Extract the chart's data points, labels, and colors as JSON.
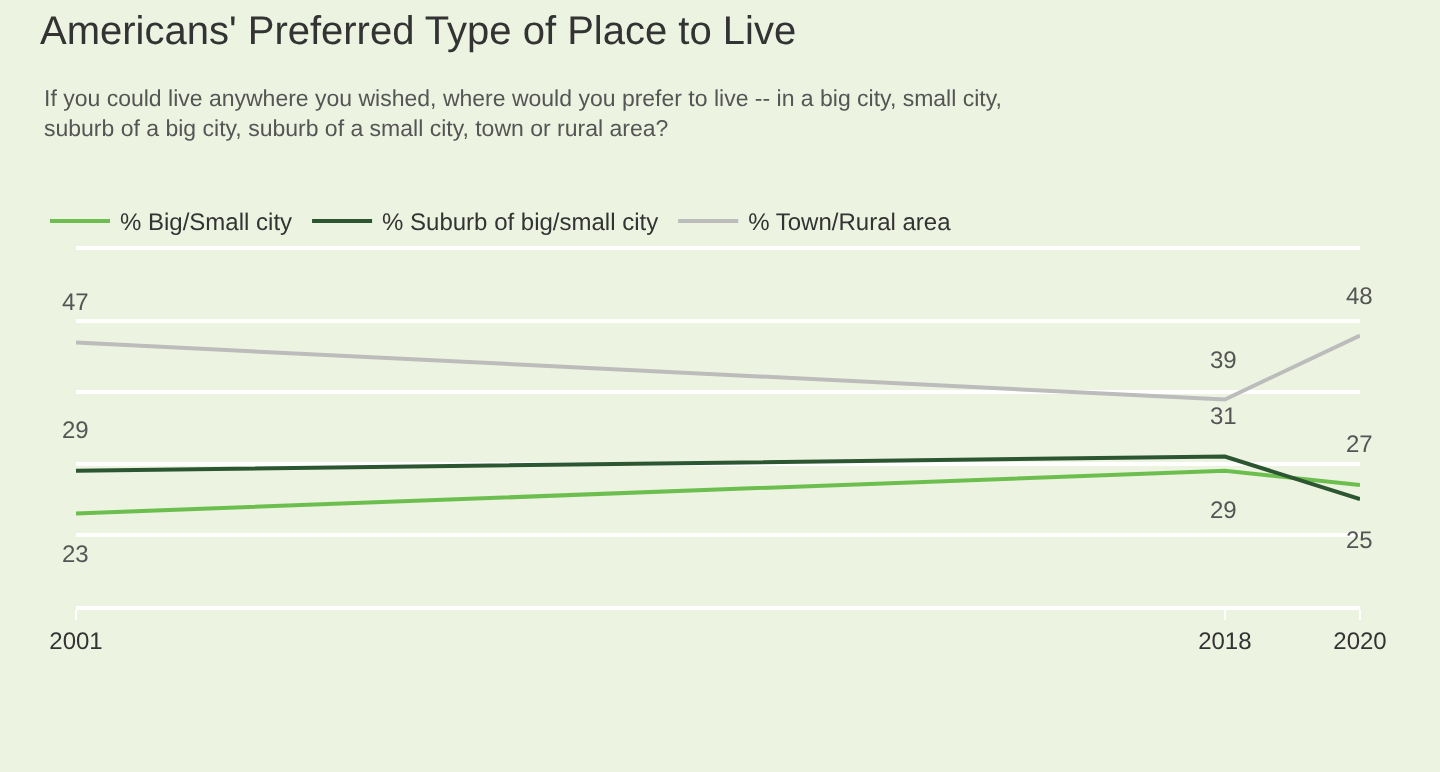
{
  "chart_data": {
    "type": "line",
    "title": "Americans' Preferred Type of Place to Live",
    "subtitle": "If you could live anywhere you wished, where would you prefer to live -- in a big city, small city, suburb of a big city, suburb of a small city, town or rural area?",
    "x": [
      2001,
      2018,
      2020
    ],
    "series": [
      {
        "name": "% Big/Small city",
        "color": "#6cbf4f",
        "values": [
          23,
          29,
          27
        ]
      },
      {
        "name": "% Suburb of big/small city",
        "color": "#2c5531",
        "values": [
          29,
          31,
          25
        ]
      },
      {
        "name": "% Town/Rural area",
        "color": "#bcbcbc",
        "values": [
          47,
          39,
          48
        ]
      }
    ],
    "xlim": [
      2001,
      2020
    ],
    "xticks": [
      2001,
      2018,
      2020
    ],
    "ylim": [
      10,
      60
    ],
    "yticks": [
      {
        "value": 10,
        "label": null
      },
      {
        "value": 20,
        "label": null
      },
      {
        "value": 30,
        "label": null
      },
      {
        "value": 40,
        "label": null
      },
      {
        "value": 50,
        "label": null
      },
      {
        "value": 60,
        "label": null
      }
    ],
    "grid": "y",
    "legend": "top left",
    "data_labels": true,
    "marker": "none",
    "line_style": "solid",
    "tick_labels": "x"
  }
}
